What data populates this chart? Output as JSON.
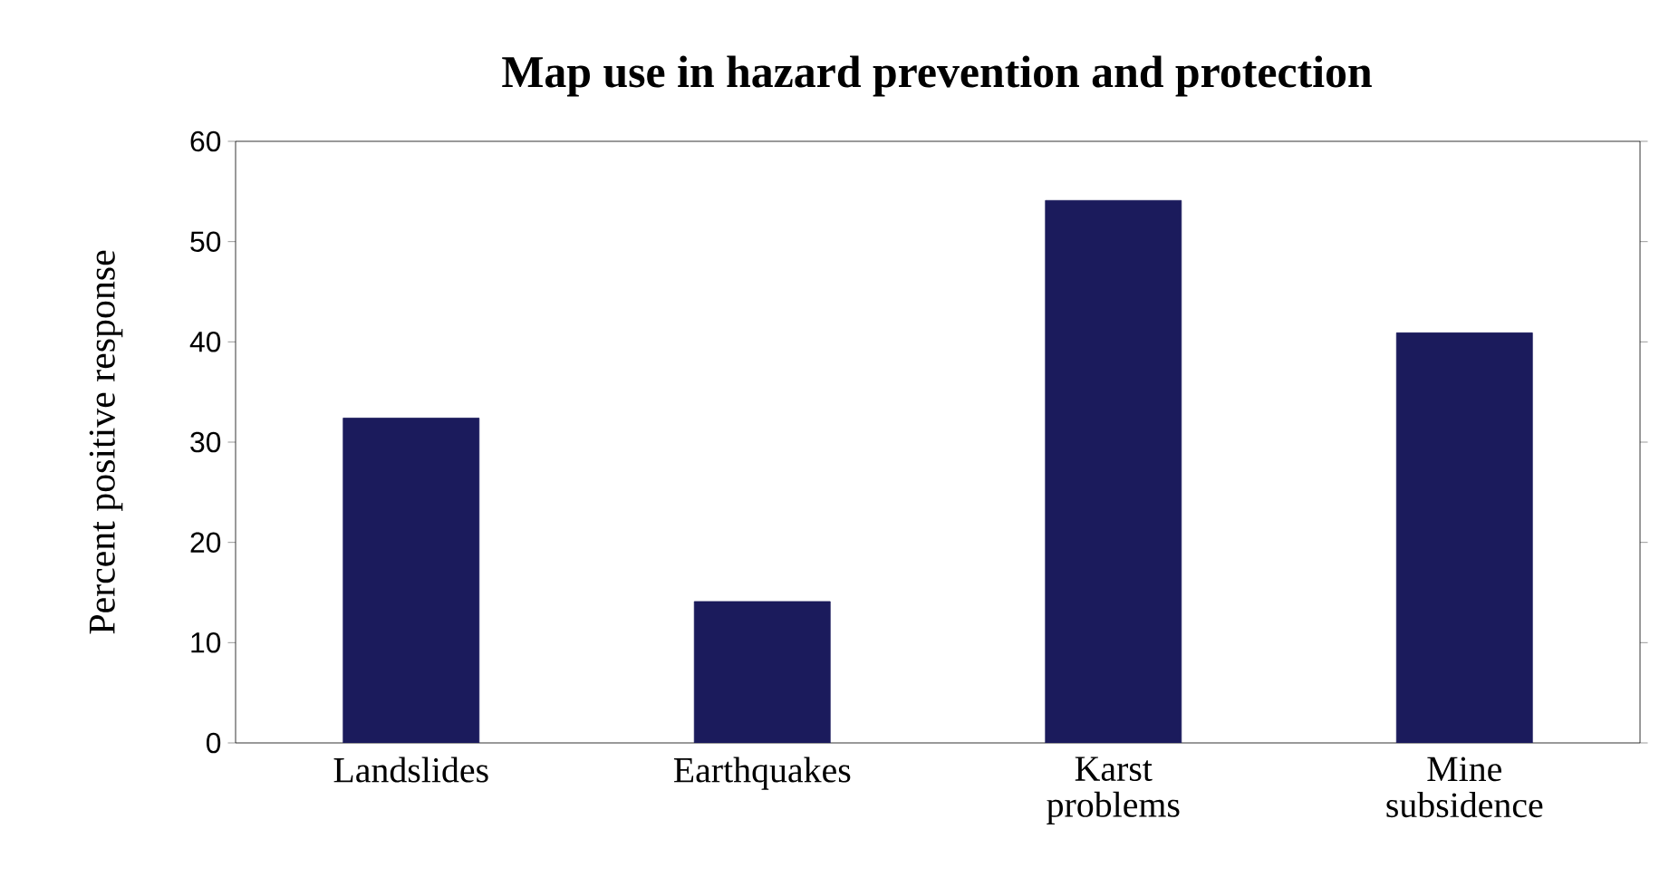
{
  "chart_data": {
    "type": "bar",
    "title": "Map use in hazard prevention and protection",
    "ylabel": "Percent positive response",
    "categories": [
      "Landslides",
      "Earthquakes",
      "Karst problems",
      "Mine subsidence"
    ],
    "values": [
      32.4,
      14.1,
      54.1,
      40.9
    ],
    "color": "#1b1b5c",
    "ylim": [
      0,
      60
    ],
    "yticks": [
      0,
      10,
      20,
      30,
      40,
      50,
      60
    ],
    "grid": false
  }
}
